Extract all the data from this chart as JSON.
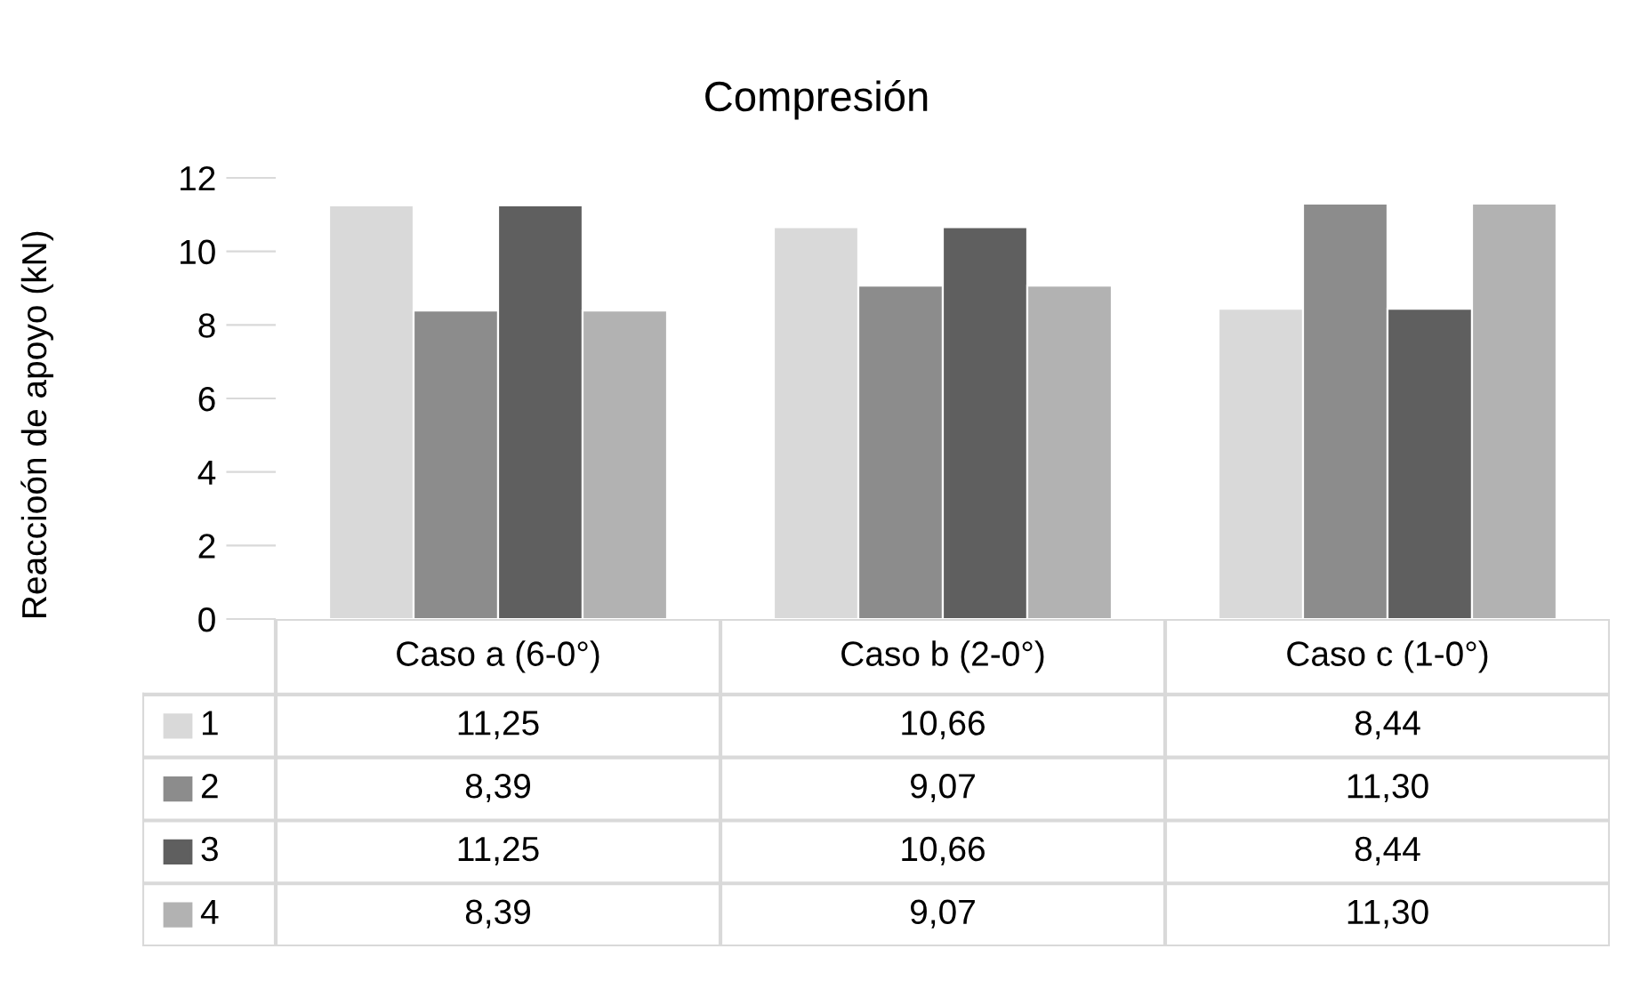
{
  "chart_data": {
    "type": "bar",
    "title": "Compresión",
    "ylabel": "Reaccioón de apoyo (kN)",
    "categories": [
      "Caso a (6-0°)",
      "Caso b (2-0°)",
      "Caso c (1-0°)"
    ],
    "series": [
      {
        "name": "1",
        "color": "#d9d9d9",
        "values": [
          11.25,
          10.66,
          8.44
        ],
        "value_labels": [
          "11,25",
          "10,66",
          "8,44"
        ]
      },
      {
        "name": "2",
        "color": "#8c8c8c",
        "values": [
          8.39,
          9.07,
          11.3
        ],
        "value_labels": [
          "8,39",
          "9,07",
          "11,30"
        ]
      },
      {
        "name": "3",
        "color": "#5f5f5f",
        "values": [
          11.25,
          10.66,
          8.44
        ],
        "value_labels": [
          "11,25",
          "10,66",
          "8,44"
        ]
      },
      {
        "name": "4",
        "color": "#b2b2b2",
        "values": [
          8.39,
          9.07,
          11.3
        ],
        "value_labels": [
          "8,39",
          "9,07",
          "11,30"
        ]
      }
    ],
    "ylim": [
      0,
      12
    ],
    "yticks": [
      0,
      2,
      4,
      6,
      8,
      10,
      12
    ],
    "legend": "bottom"
  }
}
